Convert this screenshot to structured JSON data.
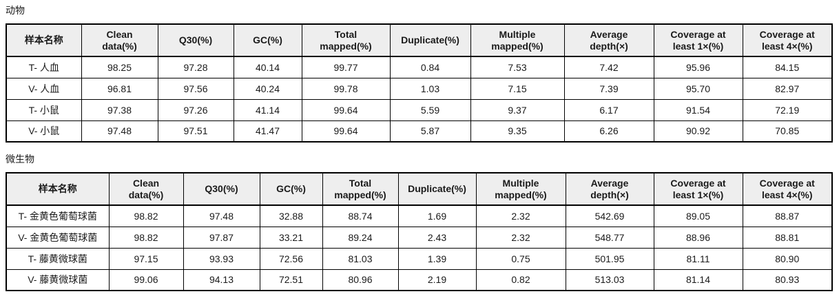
{
  "colors": {
    "header_bg": "#eeeeee",
    "border": "#000000",
    "text": "#1a1a1a"
  },
  "page": {
    "sections": [
      {
        "title": "动物",
        "table": {
          "headers": [
            "样本名称",
            "Clean\ndata(%)",
            "Q30(%)",
            "GC(%)",
            "Total\nmapped(%)",
            "Duplicate(%)",
            "Multiple\nmapped(%)",
            "Average\ndepth(×)",
            "Coverage at\nleast 1×(%)",
            "Coverage at\nleast 4×(%)"
          ],
          "rows": [
            [
              "T- 人血",
              "98.25",
              "97.28",
              "40.14",
              "99.77",
              "0.84",
              "7.53",
              "7.42",
              "95.96",
              "84.15"
            ],
            [
              "V- 人血",
              "96.81",
              "97.56",
              "40.24",
              "99.78",
              "1.03",
              "7.15",
              "7.39",
              "95.70",
              "82.97"
            ],
            [
              "T- 小鼠",
              "97.38",
              "97.26",
              "41.14",
              "99.64",
              "5.59",
              "9.37",
              "6.17",
              "91.54",
              "72.19"
            ],
            [
              "V- 小鼠",
              "97.48",
              "97.51",
              "41.47",
              "99.64",
              "5.87",
              "9.35",
              "6.26",
              "90.92",
              "70.85"
            ]
          ]
        }
      },
      {
        "title": "微生物",
        "table": {
          "headers": [
            "样本名称",
            "Clean\ndata(%)",
            "Q30(%)",
            "GC(%)",
            "Total\nmapped(%)",
            "Duplicate(%)",
            "Multiple\nmapped(%)",
            "Average\ndepth(×)",
            "Coverage at\nleast 1×(%)",
            "Coverage at\nleast 4×(%)"
          ],
          "rows": [
            [
              "T- 金黄色葡萄球菌",
              "98.82",
              "97.48",
              "32.88",
              "88.74",
              "1.69",
              "2.32",
              "542.69",
              "89.05",
              "88.87"
            ],
            [
              "V- 金黄色葡萄球菌",
              "98.82",
              "97.87",
              "33.21",
              "89.24",
              "2.43",
              "2.32",
              "548.77",
              "88.96",
              "88.81"
            ],
            [
              "T- 藤黄微球菌",
              "97.15",
              "93.93",
              "72.56",
              "81.03",
              "1.39",
              "0.75",
              "501.95",
              "81.11",
              "80.90"
            ],
            [
              "V- 藤黄微球菌",
              "99.06",
              "94.13",
              "72.51",
              "80.96",
              "2.19",
              "0.82",
              "513.03",
              "81.14",
              "80.93"
            ]
          ]
        }
      }
    ]
  }
}
